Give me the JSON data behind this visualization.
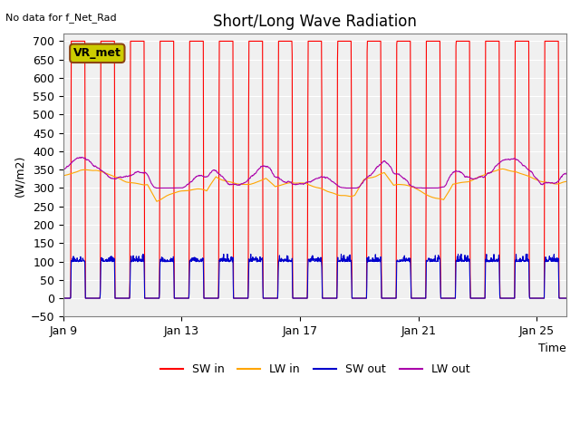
{
  "title": "Short/Long Wave Radiation",
  "subtitle": "No data for f_Net_Rad",
  "xlabel": "Time",
  "ylabel": "(W/m2)",
  "ylim": [
    -50,
    720
  ],
  "yticks": [
    -50,
    0,
    50,
    100,
    150,
    200,
    250,
    300,
    350,
    400,
    450,
    500,
    550,
    600,
    650,
    700
  ],
  "xtick_labels": [
    "Jan 9",
    "Jan 13",
    "Jan 17",
    "Jan 21",
    "Jan 25"
  ],
  "legend_labels": [
    "SW in",
    "LW in",
    "SW out",
    "LW out"
  ],
  "legend_colors": [
    "#ff0000",
    "#ffa500",
    "#0000cc",
    "#aa00aa"
  ],
  "bg_color": "#e8e8e8",
  "plot_bg_color": "#f0f0f0",
  "annotation_text": "VR_met",
  "annotation_bg": "#cccc00",
  "annotation_border": "#8b4513"
}
